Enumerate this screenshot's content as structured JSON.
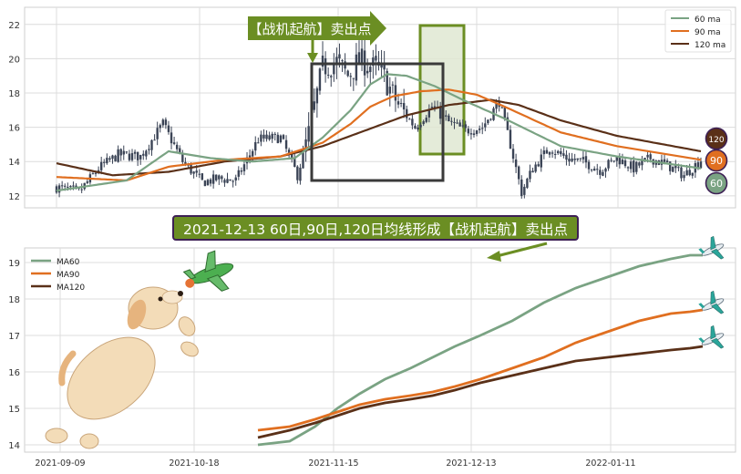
{
  "colors": {
    "ma60": "#7aa383",
    "ma90": "#e06f20",
    "ma120": "#5a3018",
    "candle": "#3b4456",
    "grid": "#dcdcdc",
    "frame": "#3a3a3a",
    "highlight_fill": "#dfe8d2",
    "highlight_stroke": "#6b8e23",
    "annotation_green": "#6b8e23",
    "banner_border": "#3d1f55"
  },
  "annotations": {
    "top_arrow_label": "【战机起航】卖出点",
    "banner": "2021-12-13 60日,90日,120日均线形成【战机起航】卖出点",
    "badge_120": "120",
    "badge_90": "90",
    "badge_60": "60"
  },
  "decorations": {
    "dog": "cartoon-dog-holding-airplane",
    "plane_icons": [
      "airplane-icon",
      "airplane-icon",
      "airplane-icon"
    ]
  },
  "chart_data": [
    {
      "type": "candlestick-with-moving-averages",
      "y_ticks": [
        "12",
        "14",
        "16",
        "18",
        "20",
        "22"
      ],
      "ylim": [
        11.3,
        23.0
      ],
      "grid": true,
      "legend_position": "top-right",
      "legend": [
        "60 ma",
        "90 ma",
        "120 ma"
      ],
      "price_keypoints": {
        "description_free": true,
        "t": [
          0,
          8,
          15,
          22,
          30,
          38,
          45,
          52,
          58,
          64,
          72,
          80,
          86,
          90,
          95,
          100,
          104,
          108,
          112,
          116,
          122,
          128,
          134,
          140,
          146,
          152,
          158,
          162,
          166,
          170,
          176,
          182,
          188,
          194,
          200,
          206,
          212,
          218,
          224,
          230
        ],
        "close": [
          12.5,
          12.2,
          13.6,
          14.4,
          14.3,
          16.2,
          14.0,
          12.8,
          13.0,
          12.9,
          15.3,
          15.4,
          13.2,
          15.6,
          19.5,
          19.8,
          19.0,
          19.9,
          19.6,
          19.2,
          17.3,
          16.0,
          17.2,
          16.3,
          15.8,
          16.0,
          17.5,
          15.0,
          12.2,
          13.6,
          14.8,
          14.2,
          14.0,
          13.5,
          14.2,
          13.6,
          14.2,
          13.8,
          13.2,
          14.1
        ]
      },
      "ma60_keypoints": {
        "t": [
          0,
          25,
          40,
          55,
          70,
          85,
          95,
          105,
          112,
          118,
          125,
          135,
          145,
          160,
          180,
          200,
          230
        ],
        "y": [
          12.3,
          12.9,
          14.6,
          14.2,
          14.0,
          14.2,
          15.4,
          17.0,
          18.5,
          19.1,
          19.0,
          18.4,
          17.6,
          16.5,
          14.9,
          14.3,
          13.6
        ]
      },
      "ma90_keypoints": {
        "t": [
          0,
          25,
          40,
          60,
          80,
          95,
          105,
          112,
          120,
          130,
          140,
          150,
          160,
          180,
          200,
          230
        ],
        "y": [
          13.1,
          12.9,
          13.7,
          14.1,
          14.3,
          15.1,
          16.2,
          17.2,
          17.8,
          18.1,
          18.2,
          17.9,
          17.2,
          15.7,
          14.9,
          14.1
        ]
      },
      "ma120_keypoints": {
        "t": [
          0,
          20,
          40,
          60,
          80,
          95,
          105,
          115,
          125,
          140,
          155,
          165,
          180,
          200,
          230
        ],
        "y": [
          13.9,
          13.2,
          13.4,
          14.0,
          14.3,
          14.9,
          15.5,
          16.1,
          16.7,
          17.3,
          17.6,
          17.3,
          16.4,
          15.5,
          14.6
        ]
      }
    },
    {
      "type": "line",
      "x_tick_labels": [
        "2021-09-09",
        "2021-10-18",
        "2021-11-15",
        "2021-12-13",
        "2022-01-11"
      ],
      "y_ticks": [
        "14",
        "15",
        "16",
        "17",
        "18",
        "19"
      ],
      "ylim": [
        13.8,
        19.4
      ],
      "grid": true,
      "legend_position": "top-left",
      "series": [
        {
          "name": "MA60",
          "x": [
            0,
            10,
            18,
            25,
            32,
            40,
            48,
            55,
            62,
            70,
            80,
            90,
            100,
            110,
            120,
            130,
            136,
            140
          ],
          "y": [
            14.0,
            14.1,
            14.5,
            15.0,
            15.4,
            15.8,
            16.1,
            16.4,
            16.7,
            17.0,
            17.4,
            17.9,
            18.3,
            18.6,
            18.9,
            19.1,
            19.2,
            19.2
          ]
        },
        {
          "name": "MA90",
          "x": [
            0,
            10,
            18,
            25,
            32,
            40,
            48,
            55,
            62,
            70,
            80,
            90,
            100,
            110,
            120,
            130,
            136,
            140
          ],
          "y": [
            14.4,
            14.5,
            14.7,
            14.9,
            15.1,
            15.25,
            15.35,
            15.45,
            15.6,
            15.8,
            16.1,
            16.4,
            16.8,
            17.1,
            17.4,
            17.6,
            17.65,
            17.7
          ]
        },
        {
          "name": "MA120",
          "x": [
            0,
            10,
            18,
            25,
            32,
            40,
            48,
            55,
            62,
            70,
            80,
            90,
            100,
            110,
            120,
            130,
            136,
            140
          ],
          "y": [
            14.2,
            14.4,
            14.6,
            14.8,
            15.0,
            15.15,
            15.25,
            15.35,
            15.5,
            15.7,
            15.9,
            16.1,
            16.3,
            16.4,
            16.5,
            16.6,
            16.65,
            16.7
          ]
        }
      ]
    }
  ]
}
